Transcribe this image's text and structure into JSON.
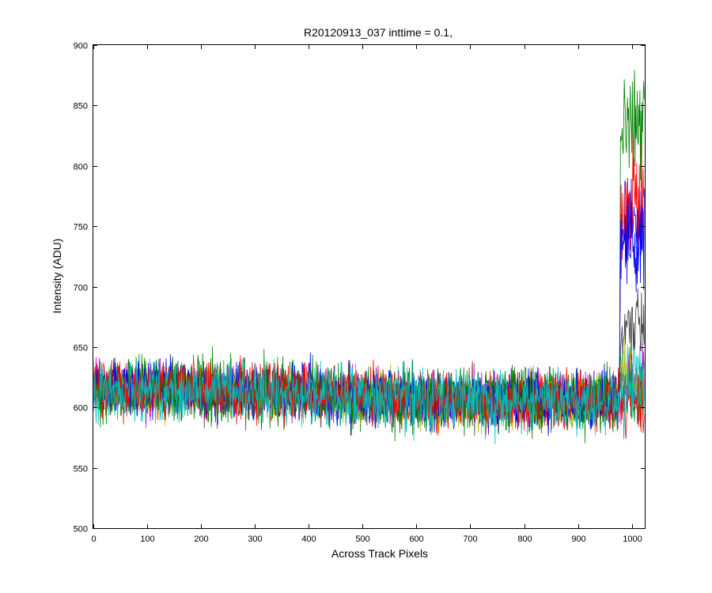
{
  "chart_data": {
    "type": "line",
    "title": "R20120913_037 inttime = 0.1,",
    "xlabel": "Across Track Pixels",
    "ylabel": "Intensity (ADU)",
    "xlim": [
      0,
      1024
    ],
    "ylim": [
      500,
      900
    ],
    "xticks": [
      0,
      100,
      200,
      300,
      400,
      500,
      600,
      700,
      800,
      900,
      1000
    ],
    "yticks": [
      500,
      550,
      600,
      650,
      700,
      750,
      800,
      850,
      900
    ],
    "xtick_labels": [
      "0",
      "100",
      "200",
      "300",
      "400",
      "500",
      "600",
      "700",
      "800",
      "900",
      "1000"
    ],
    "ytick_labels": [
      "500",
      "550",
      "600",
      "650",
      "700",
      "750",
      "800",
      "850",
      "900"
    ],
    "grid": false,
    "legend": "none",
    "n_points": 1024,
    "baseline": [
      {
        "x": 0,
        "y": 616
      },
      {
        "x": 400,
        "y": 612
      },
      {
        "x": 600,
        "y": 606
      },
      {
        "x": 800,
        "y": 606
      },
      {
        "x": 975,
        "y": 607
      }
    ],
    "series": [
      {
        "color": "#0000ff",
        "noise": 11,
        "tail": 748
      },
      {
        "color": "#008000",
        "noise": 13,
        "tail": 832
      },
      {
        "color": "#ff0000",
        "noise": 12,
        "tail": 768
      },
      {
        "color": "#00bfbf",
        "noise": 12,
        "tail": 635
      },
      {
        "color": "#bf00bf",
        "noise": 11,
        "tail": 612
      },
      {
        "color": "#bfbf00",
        "noise": 11,
        "tail": 618
      },
      {
        "color": "#404040",
        "noise": 11,
        "tail": 668
      },
      {
        "color": "#0000ff",
        "noise": 11,
        "tail": 740
      },
      {
        "color": "#008000",
        "noise": 12,
        "tail": 610
      },
      {
        "color": "#ff0000",
        "noise": 11,
        "tail": 605
      },
      {
        "color": "#00bfbf",
        "noise": 12,
        "tail": 611
      }
    ],
    "tail_start_x": 978
  }
}
